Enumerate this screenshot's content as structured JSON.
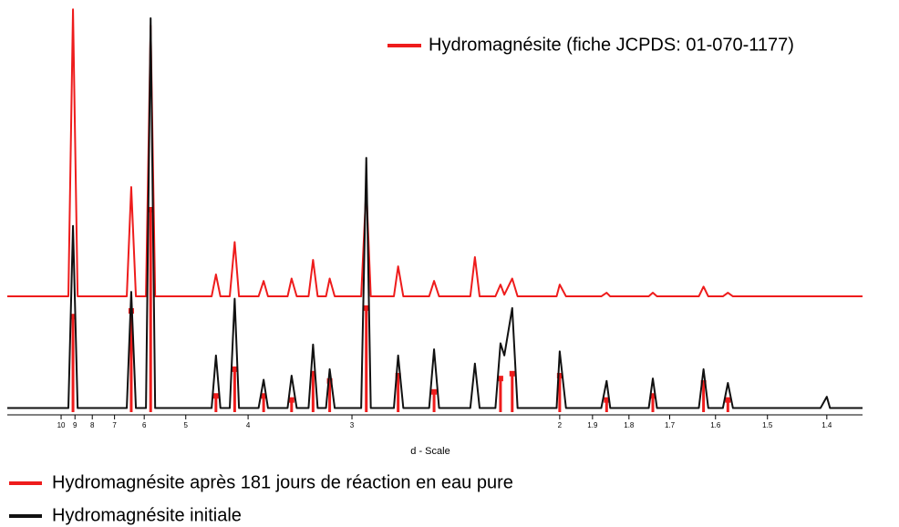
{
  "chart_data": {
    "type": "xrd",
    "x_label": "d - Scale",
    "xscale": "reciprocal",
    "xlim": [
      17.6,
      1.346
    ],
    "xticks": [
      10,
      9,
      8,
      7,
      6,
      5,
      4,
      3,
      2,
      1.9,
      1.8,
      1.7,
      1.6,
      1.5,
      1.4
    ],
    "ylim": [
      0,
      100
    ],
    "x": [
      17.6,
      9.45,
      9.13,
      8.83,
      6.55,
      6.4,
      6.25,
      5.95,
      5.82,
      5.7,
      4.53,
      4.46,
      4.39,
      4.25,
      4.18,
      4.12,
      3.87,
      3.81,
      3.76,
      3.55,
      3.51,
      3.46,
      3.35,
      3.31,
      3.27,
      3.2,
      3.17,
      3.13,
      2.935,
      2.9,
      2.87,
      2.725,
      2.7,
      2.67,
      2.53,
      2.505,
      2.48,
      2.335,
      2.315,
      2.295,
      2.23,
      2.21,
      2.195,
      2.165,
      2.145,
      2.01,
      2.0,
      1.98,
      1.875,
      1.86,
      1.85,
      1.75,
      1.74,
      1.73,
      1.635,
      1.625,
      1.615,
      1.585,
      1.575,
      1.565,
      1.41,
      1.4,
      1.395,
      1.346
    ],
    "series": [
      {
        "name": "Hydromagnésite après 181 jours de réaction en eau pure",
        "color": "#ee1c1c",
        "values": [
          28.6,
          28.6,
          99.5,
          28.6,
          28.6,
          55.6,
          28.6,
          28.6,
          95.5,
          28.6,
          28.6,
          34,
          28.6,
          28.6,
          42,
          28.6,
          28.6,
          32.4,
          28.6,
          28.6,
          33,
          28.6,
          28.6,
          37.6,
          28.6,
          28.6,
          33,
          28.6,
          28.6,
          55.6,
          28.6,
          28.6,
          36,
          28.6,
          28.6,
          32.4,
          28.6,
          28.6,
          38.3,
          28.6,
          28.6,
          31.5,
          29,
          33,
          28.6,
          28.6,
          31.5,
          28.6,
          28.6,
          29.5,
          28.6,
          28.6,
          29.5,
          28.6,
          28.6,
          31,
          28.6,
          28.6,
          29.5,
          28.6,
          28.6,
          28.6,
          28.6,
          28.6
        ]
      },
      {
        "name": "Hydromagnésite initiale",
        "color": "#111111",
        "values": [
          1,
          1,
          46,
          1,
          1,
          29.7,
          1,
          1,
          97.3,
          1,
          1,
          14,
          1,
          1,
          28,
          1,
          1,
          8,
          1,
          1,
          9,
          1,
          1,
          16.7,
          1,
          1,
          10.6,
          1,
          1,
          62.8,
          1,
          1,
          14,
          1,
          1,
          15.5,
          1,
          1,
          12,
          1,
          1,
          17,
          14,
          25.7,
          1,
          1,
          15,
          1,
          1,
          7.7,
          1,
          1,
          8.3,
          1,
          1,
          10.6,
          1,
          1,
          7.2,
          1,
          1,
          3.8,
          1,
          1
        ]
      }
    ],
    "reference": {
      "name": "Hydromagnésite (fiche JCPDS: 01-070-1177)",
      "color": "#ee1c1c",
      "x": [
        9.13,
        6.4,
        5.82,
        4.46,
        4.18,
        3.81,
        3.51,
        3.31,
        3.17,
        2.9,
        2.7,
        2.505,
        2.21,
        2.165,
        2.0,
        1.86,
        1.74,
        1.625,
        1.575
      ],
      "values": [
        23.6,
        25,
        50,
        4,
        10.6,
        4,
        3,
        9.5,
        7.7,
        25.7,
        9,
        5,
        8.3,
        9.5,
        9,
        3,
        4,
        7.2,
        3
      ]
    }
  }
}
